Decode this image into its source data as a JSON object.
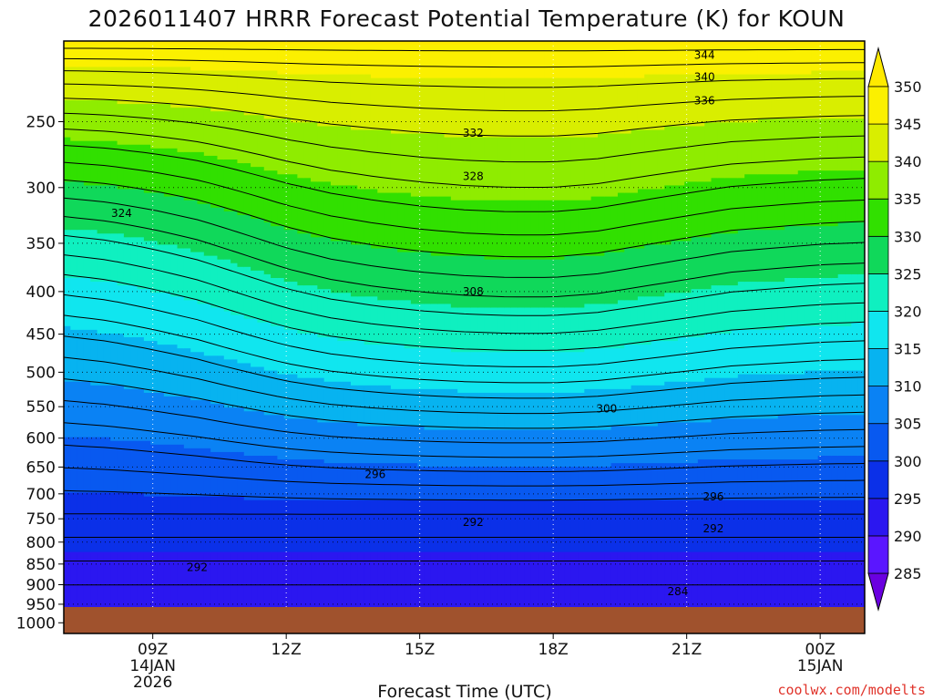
{
  "chart_data": {
    "type": "contour",
    "title": "2026011407 HRRR Forecast Potential Temperature (K) for KOUN",
    "xlabel": "Forecast Time (UTC)",
    "ylabel": "",
    "x_ticks": [
      {
        "hour": 9,
        "label": "09Z",
        "sub1": "14JAN",
        "sub2": "2026"
      },
      {
        "hour": 12,
        "label": "12Z",
        "sub1": "",
        "sub2": ""
      },
      {
        "hour": 15,
        "label": "15Z",
        "sub1": "",
        "sub2": ""
      },
      {
        "hour": 18,
        "label": "18Z",
        "sub1": "",
        "sub2": ""
      },
      {
        "hour": 21,
        "label": "21Z",
        "sub1": "",
        "sub2": ""
      },
      {
        "hour": 24,
        "label": "00Z",
        "sub1": "15JAN",
        "sub2": ""
      }
    ],
    "xlim": [
      7,
      25
    ],
    "y_ticks": [
      250,
      300,
      350,
      400,
      450,
      500,
      550,
      600,
      650,
      700,
      750,
      800,
      850,
      900,
      950,
      1000
    ],
    "ylim": [
      1030,
      200
    ],
    "surface_pressure": 975,
    "colorbar": {
      "levels": [
        285,
        290,
        295,
        300,
        305,
        310,
        315,
        320,
        325,
        330,
        335,
        340,
        345,
        350
      ],
      "colors": [
        "#6a00e0",
        "#5a16ff",
        "#2b17f0",
        "#0b30e8",
        "#0859f0",
        "#0a82f4",
        "#07b3f0",
        "#10e6ef",
        "#0ff0c0",
        "#10d85a",
        "#31e000",
        "#8fec00",
        "#d9ee00",
        "#fbf000",
        "#ffea00"
      ]
    },
    "contour_labels": [
      "344",
      "340",
      "336",
      "332",
      "328",
      "324",
      "308",
      "300",
      "296",
      "296",
      "292",
      "292",
      "292",
      "284"
    ],
    "series": [
      {
        "name": "",
        "values_k": [
          285,
          290,
          295,
          300,
          305,
          310,
          315,
          320,
          325,
          330,
          335,
          340,
          345,
          350
        ]
      }
    ]
  },
  "credit": "coolwx.com/modelts"
}
